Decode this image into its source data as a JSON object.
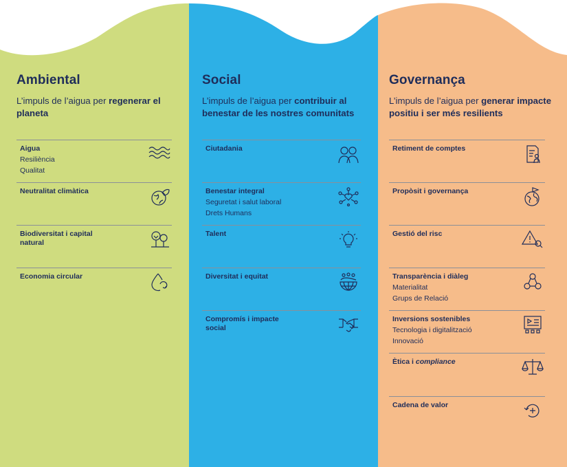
{
  "colors": {
    "green": "#cfdc7f",
    "blue": "#2db0e6",
    "orange": "#f6bc8a",
    "navy": "#1f2d5a"
  },
  "columns": [
    {
      "title": "Ambiental",
      "subtitle_plain": "L’impuls de l’aigua per ",
      "subtitle_bold": "regenerar el planeta",
      "items": [
        {
          "title": "Aigua",
          "sub": [
            "Resiliència",
            "Qualitat"
          ],
          "icon": "water-waves-icon"
        },
        {
          "title": "Neutralitat climàtica",
          "sub": [],
          "icon": "earth-leaf-icon"
        },
        {
          "title": "Biodiversitat i capital natural",
          "sub": [],
          "icon": "trees-icon"
        },
        {
          "title": "Economia circular",
          "sub": [],
          "icon": "recycle-drop-icon"
        }
      ]
    },
    {
      "title": "Social",
      "subtitle_plain": "L’impuls de l’aigua per ",
      "subtitle_bold": "contribuir al benestar de les nostres comunitats",
      "items": [
        {
          "title": "Ciutadania",
          "sub": [],
          "icon": "people-icon"
        },
        {
          "title": "Benestar integral",
          "sub": [
            "Seguretat i salut laboral",
            "Drets Humans"
          ],
          "icon": "heart-network-icon"
        },
        {
          "title": "Talent",
          "sub": [],
          "icon": "lightbulb-icon"
        },
        {
          "title": "Diversitat i equitat",
          "sub": [],
          "icon": "globe-people-icon"
        },
        {
          "title": "Compromís i impacte social",
          "sub": [],
          "icon": "handshake-icon"
        }
      ]
    },
    {
      "title": "Governança",
      "subtitle_plain": "L’impuls de l’aigua per ",
      "subtitle_bold": "generar impacte positiu i ser més resilients",
      "items": [
        {
          "title": "Retiment de comptes",
          "sub": [],
          "icon": "report-person-icon"
        },
        {
          "title": "Propòsit i governança",
          "sub": [],
          "icon": "globe-flag-icon"
        },
        {
          "title": "Gestió del risc",
          "sub": [],
          "icon": "warning-search-icon"
        },
        {
          "title": "Transparència i diàleg",
          "sub": [
            "Materialitat",
            "Grups de Relació"
          ],
          "icon": "people-network-icon"
        },
        {
          "title": "Inversions sostenibles",
          "sub": [
            "Tecnologia i digitalització",
            "Innovació"
          ],
          "icon": "dashboard-icon"
        },
        {
          "title": "Ètica i ",
          "title_italic": "compliance",
          "sub": [],
          "icon": "scales-icon"
        },
        {
          "title": "Cadena de valor",
          "sub": [],
          "icon": "cycle-plus-icon"
        }
      ]
    }
  ]
}
